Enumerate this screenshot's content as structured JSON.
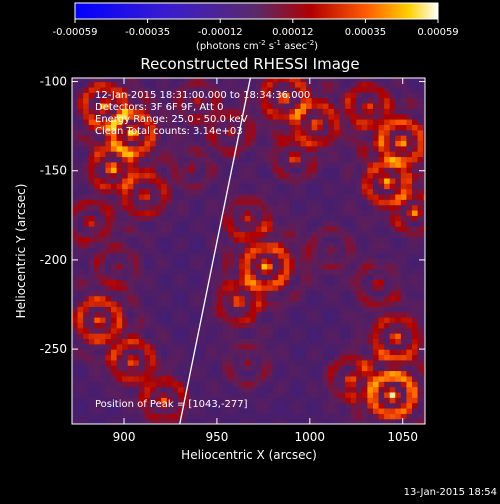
{
  "chart_data": {
    "type": "heatmap",
    "title": "Reconstructed RHESSI Image",
    "xlabel": "Heliocentric X (arcsec)",
    "ylabel": "Heliocentric Y (arcsec)",
    "xlim": [
      872,
      1062
    ],
    "ylim": [
      -292,
      -98
    ],
    "xticks": [
      900,
      950,
      1000,
      1050
    ],
    "yticks": [
      -100,
      -150,
      -200,
      -250
    ],
    "colorbar": {
      "ticks": [
        "-0.00059",
        "-0.00035",
        "-0.00012",
        "0.00012",
        "0.00035",
        "0.00059"
      ],
      "units_label": "(photons cm",
      "units_exp1": "-2",
      "units_mid": " s",
      "units_exp2": "-1",
      "units_mid2": " asec",
      "units_exp3": "-2",
      "units_end": ")",
      "range": [
        -0.00059,
        0.00059
      ]
    },
    "annotations": {
      "time_range": "12-Jan-2015 18:31:00.000 to 18:34:36.000",
      "detectors": "Detectors: 3F 6F 9F, Att 0",
      "energy": "Energy Range: 25.0 - 50.0 keV",
      "clean": "Clean     Total counts: 3.14e+03",
      "peak": "Position of Peak = [1043,-277]"
    },
    "limb_line": {
      "x": [
        930,
        968
      ],
      "y": [
        -292,
        -98
      ]
    },
    "hotspots": [
      {
        "x": 888,
        "y": -115,
        "v": 0.00045,
        "s": 12
      },
      {
        "x": 903,
        "y": -130,
        "v": 0.00052,
        "s": 11
      },
      {
        "x": 892,
        "y": -150,
        "v": 0.0004,
        "s": 10
      },
      {
        "x": 910,
        "y": -165,
        "v": 0.00035,
        "s": 11
      },
      {
        "x": 880,
        "y": -180,
        "v": 0.0003,
        "s": 10
      },
      {
        "x": 938,
        "y": -112,
        "v": 0.0003,
        "s": 9
      },
      {
        "x": 935,
        "y": -150,
        "v": 0.00022,
        "s": 9
      },
      {
        "x": 956,
        "y": -130,
        "v": 0.00028,
        "s": 10
      },
      {
        "x": 985,
        "y": -110,
        "v": 0.0004,
        "s": 12
      },
      {
        "x": 1002,
        "y": -125,
        "v": 0.00036,
        "s": 11
      },
      {
        "x": 990,
        "y": -145,
        "v": 0.0003,
        "s": 9
      },
      {
        "x": 1030,
        "y": -115,
        "v": 0.00035,
        "s": 11
      },
      {
        "x": 1048,
        "y": -135,
        "v": 0.0005,
        "s": 12
      },
      {
        "x": 1040,
        "y": -158,
        "v": 0.00045,
        "s": 11
      },
      {
        "x": 1055,
        "y": -175,
        "v": 0.00038,
        "s": 9
      },
      {
        "x": 965,
        "y": -178,
        "v": 0.0003,
        "s": 11
      },
      {
        "x": 975,
        "y": -205,
        "v": 0.0005,
        "s": 13
      },
      {
        "x": 960,
        "y": -225,
        "v": 0.00035,
        "s": 10
      },
      {
        "x": 895,
        "y": -205,
        "v": 0.0002,
        "s": 12
      },
      {
        "x": 885,
        "y": -235,
        "v": 0.00045,
        "s": 12
      },
      {
        "x": 903,
        "y": -258,
        "v": 0.0004,
        "s": 11
      },
      {
        "x": 920,
        "y": -280,
        "v": 0.00038,
        "s": 10
      },
      {
        "x": 1010,
        "y": -195,
        "v": 0.00018,
        "s": 12
      },
      {
        "x": 1035,
        "y": -215,
        "v": 0.00022,
        "s": 11
      },
      {
        "x": 1045,
        "y": -245,
        "v": 0.00038,
        "s": 12
      },
      {
        "x": 1043,
        "y": -277,
        "v": 0.00059,
        "s": 13
      },
      {
        "x": 1020,
        "y": -268,
        "v": 0.0003,
        "s": 10
      },
      {
        "x": 965,
        "y": -260,
        "v": 0.0002,
        "s": 12
      }
    ]
  },
  "footer": {
    "timestamp": "13-Jan-2015 18:54"
  },
  "colors": {
    "background": "#000000",
    "text": "#ffffff"
  }
}
